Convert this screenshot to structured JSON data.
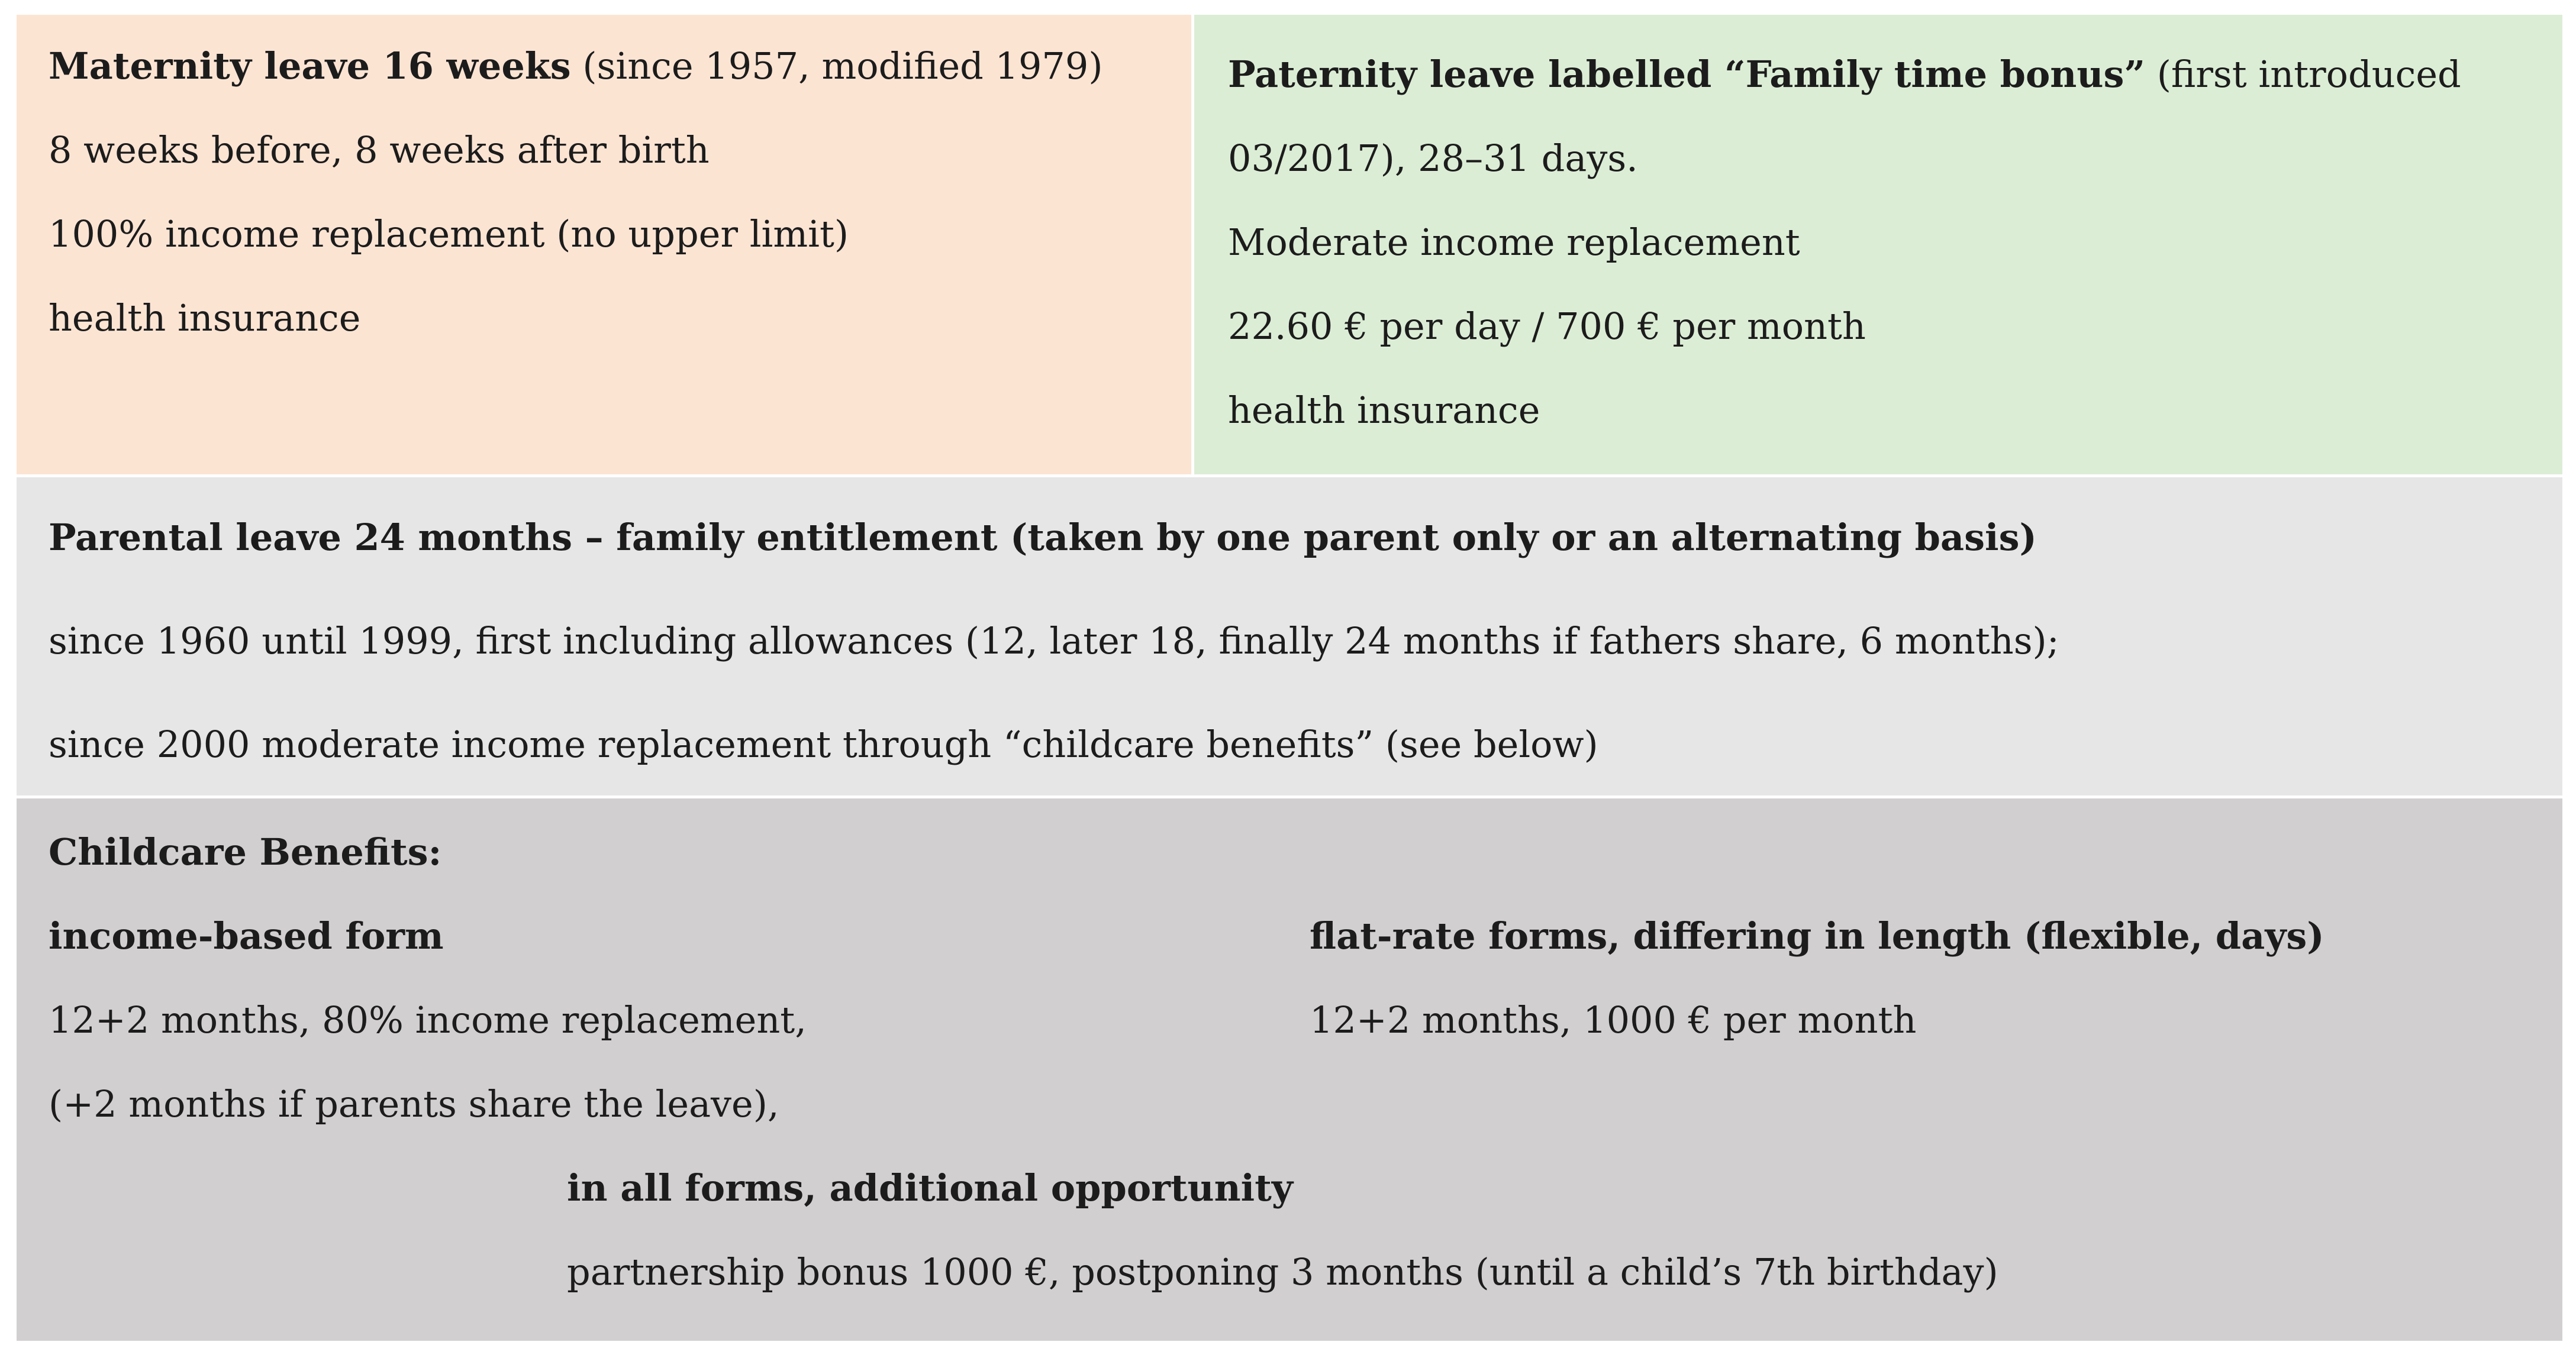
{
  "colors": {
    "maternity_bg": "#FCE4D3",
    "paternity_bg": "#DCEDD6",
    "parental_bg": "#E7E6E6",
    "childcare_bg": "#D2CFD0",
    "text": "#1C1C1C",
    "page_bg": "#FFFFFF"
  },
  "maternity": {
    "title_bold": "Maternity leave 16 weeks",
    "title_rest": " (since 1957, modified 1979)",
    "line2": "8 weeks before, 8 weeks after birth",
    "line3": "100% income replacement (no upper limit)",
    "line4": "health insurance"
  },
  "paternity": {
    "title_bold": "Paternity leave labelled “Family time bonus”",
    "title_rest": " (first introduced",
    "line2": "03/2017), 28–31 days.",
    "line3": "Moderate income replacement",
    "line4": "22.60 € per day / 700 € per month",
    "line5": "health insurance"
  },
  "parental": {
    "title_bold": "Parental leave 24 months – family entitlement (taken by one parent only or an alternating basis)",
    "line2": "since 1960 until 1999, first including allowances (12, later 18, finally 24 months if fathers share, 6 months);",
    "line3": "since 2000 moderate income replacement through “childcare benefits” (see below)"
  },
  "childcare": {
    "heading_bold": "Childcare Benefits:",
    "income_form_bold": "income-based form",
    "income_line1": "12+2 months, 80% income replacement,",
    "income_line2": "(+2 months if parents share the leave),",
    "flat_form_bold": "flat-rate forms, differing in length (flexible, days)",
    "flat_line1": "12+2 months, 1000 € per month",
    "all_forms_bold": "in all forms, additional opportunity",
    "all_forms_line": "partnership bonus 1000 €, postponing 3 months (until a child’s 7th birthday)"
  }
}
